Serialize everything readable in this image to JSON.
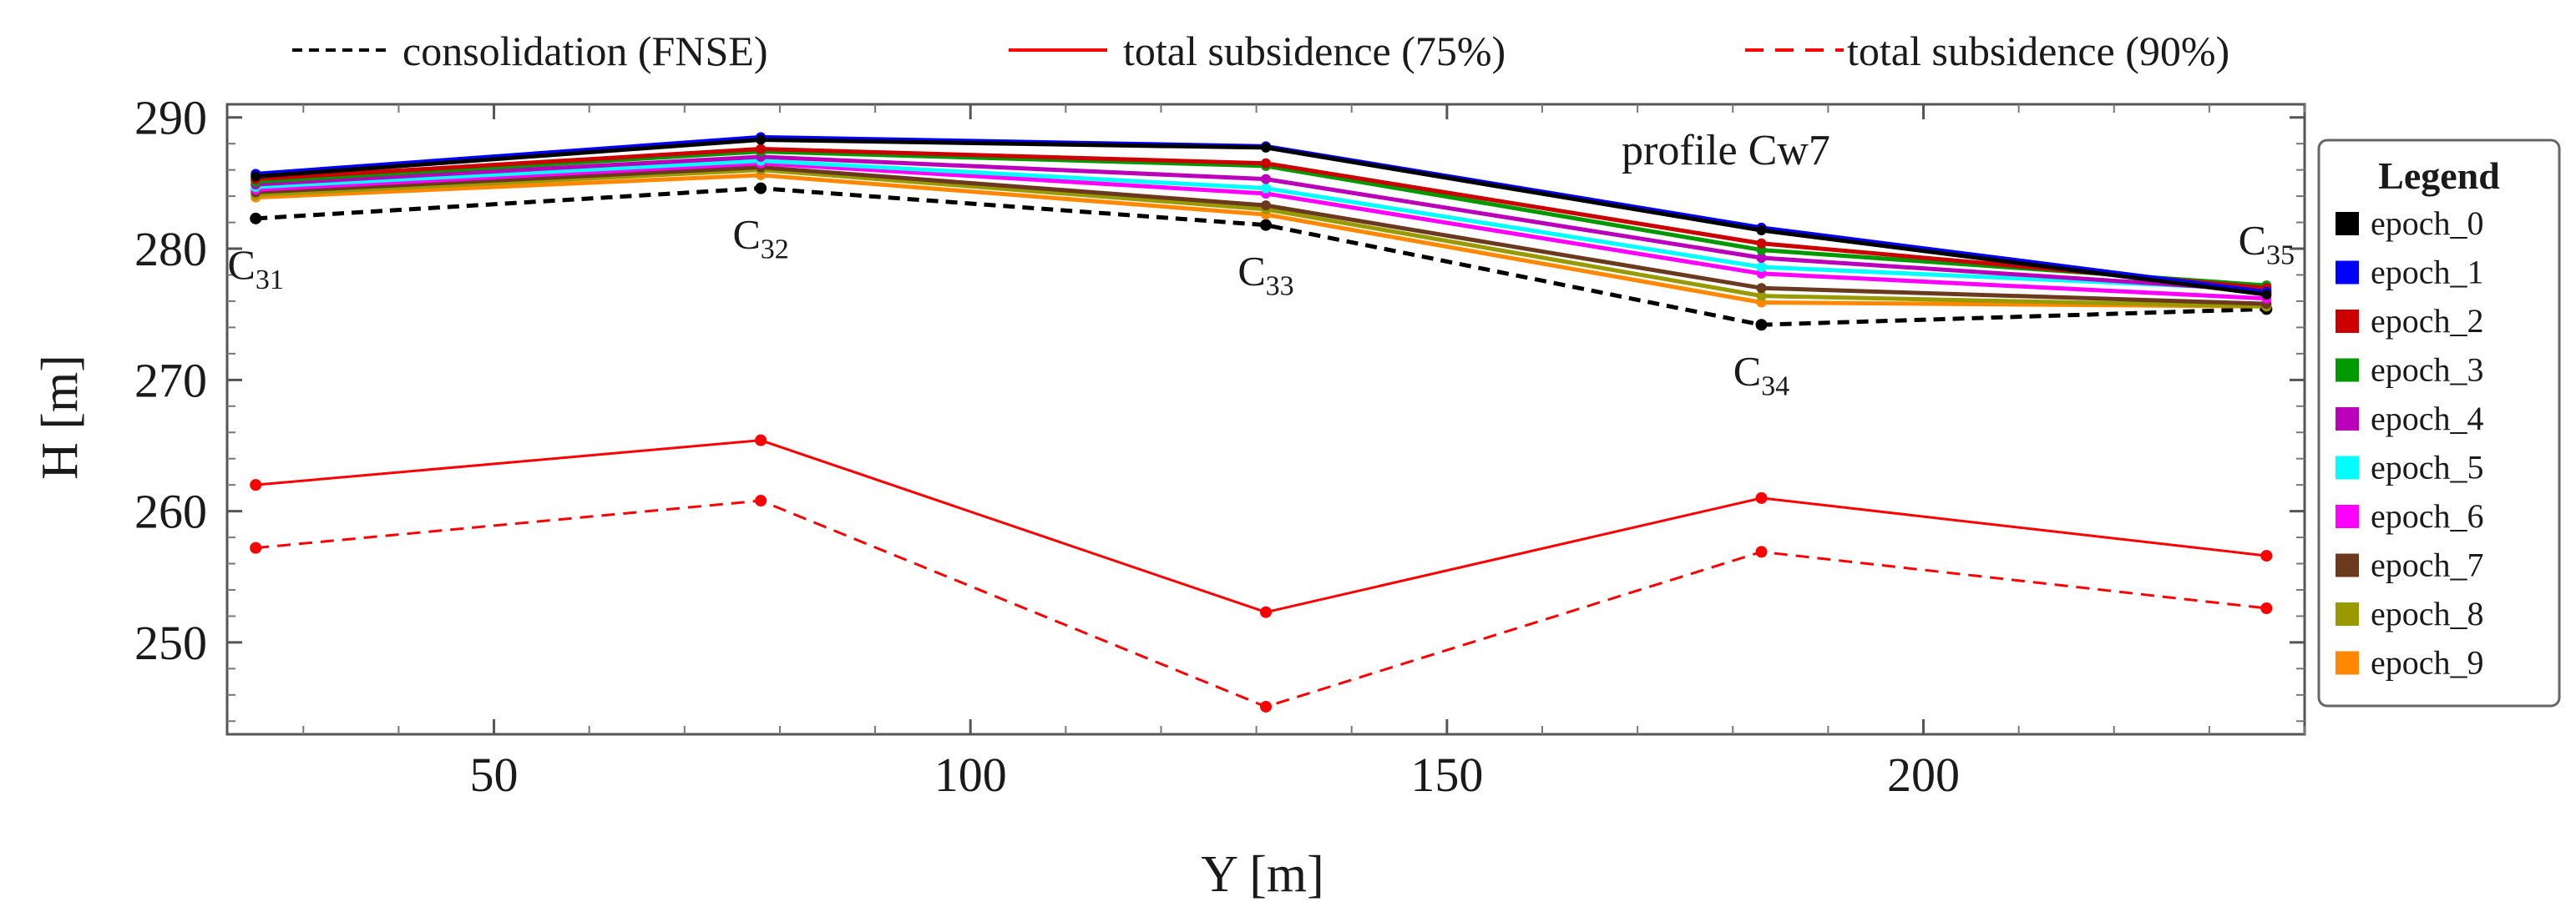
{
  "chart_data": {
    "type": "line",
    "annotation": "profile Cw7",
    "xlabel": "Y [m]",
    "ylabel": "H [m]",
    "xlim": [
      22,
      240
    ],
    "ylim": [
      243,
      291
    ],
    "xticks": [
      50,
      100,
      150,
      200
    ],
    "yticks": [
      250,
      260,
      270,
      280,
      290
    ],
    "x": [
      25,
      78,
      131,
      183,
      236
    ],
    "point_labels": [
      {
        "base": "C",
        "sub": "31",
        "x": 25,
        "y": 282.3,
        "pos": "below"
      },
      {
        "base": "C",
        "sub": "32",
        "x": 78,
        "y": 284.6,
        "pos": "below"
      },
      {
        "base": "C",
        "sub": "33",
        "x": 131,
        "y": 281.8,
        "pos": "below"
      },
      {
        "base": "C",
        "sub": "34",
        "x": 183,
        "y": 274.2,
        "pos": "below"
      },
      {
        "base": "C",
        "sub": "35",
        "x": 236,
        "y": 277.3,
        "pos": "above"
      }
    ],
    "top_legend": [
      {
        "label": "consolidation (FNSE)",
        "color": "#000000",
        "style": "dashed"
      },
      {
        "label": "total subsidence (75%)",
        "color": "#ff0000",
        "style": "solid"
      },
      {
        "label": "total subsidence (90%)",
        "color": "#ff0000",
        "style": "dashed"
      }
    ],
    "reference_series": [
      {
        "name": "consolidation (FNSE)",
        "color": "#000000",
        "style": "dashed",
        "values": [
          282.3,
          284.6,
          281.8,
          274.2,
          275.4
        ]
      },
      {
        "name": "total subsidence (75%)",
        "color": "#ff0000",
        "style": "solid",
        "values": [
          262.0,
          265.4,
          252.3,
          261.0,
          256.6
        ]
      },
      {
        "name": "total subsidence (90%)",
        "color": "#ff0000",
        "style": "dashed",
        "values": [
          257.2,
          260.8,
          245.1,
          256.9,
          252.6
        ]
      }
    ],
    "legend_title": "Legend",
    "series": [
      {
        "name": "epoch_0",
        "color": "#000000",
        "values": [
          285.5,
          288.3,
          287.7,
          281.4,
          276.5
        ]
      },
      {
        "name": "epoch_1",
        "color": "#0000ff",
        "values": [
          285.7,
          288.5,
          287.8,
          281.6,
          276.7
        ]
      },
      {
        "name": "epoch_2",
        "color": "#cc0000",
        "values": [
          285.3,
          287.6,
          286.5,
          280.4,
          277.0
        ]
      },
      {
        "name": "epoch_3",
        "color": "#009900",
        "values": [
          285.1,
          287.4,
          286.3,
          279.9,
          277.2
        ]
      },
      {
        "name": "epoch_4",
        "color": "#bb00bb",
        "values": [
          284.9,
          287.0,
          285.3,
          279.3,
          276.8
        ]
      },
      {
        "name": "epoch_5",
        "color": "#00ffff",
        "values": [
          284.7,
          286.7,
          284.6,
          278.6,
          276.9
        ]
      },
      {
        "name": "epoch_6",
        "color": "#ff00ff",
        "values": [
          284.5,
          286.5,
          284.2,
          278.1,
          276.2
        ]
      },
      {
        "name": "epoch_7",
        "color": "#6b3a1e",
        "values": [
          284.3,
          286.2,
          283.3,
          277.0,
          275.8
        ]
      },
      {
        "name": "epoch_8",
        "color": "#999900",
        "values": [
          284.1,
          286.0,
          283.0,
          276.4,
          275.6
        ]
      },
      {
        "name": "epoch_9",
        "color": "#ff8800",
        "values": [
          283.9,
          285.6,
          282.6,
          275.9,
          275.6
        ]
      }
    ]
  }
}
